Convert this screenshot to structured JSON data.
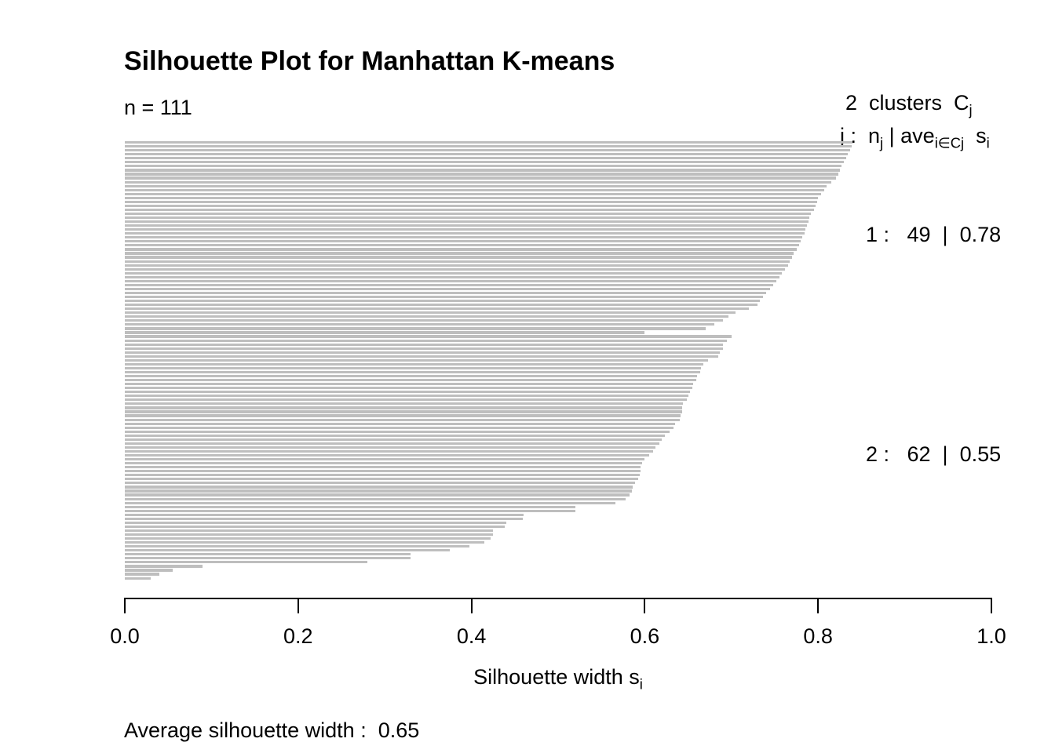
{
  "title": "Silhouette Plot for Manhattan K-means",
  "n_label": "n = 111",
  "legend": {
    "line1_text": "2  clusters  C",
    "line1_sub": "j",
    "formula_p1": "j :  n",
    "formula_s1": "j",
    "formula_p2": " | ave",
    "formula_s2": "i∈Cj",
    "formula_p3": "  s",
    "formula_s3": "i"
  },
  "cluster_labels": [
    "1 :   49  |  0.78",
    "2 :   62  |  0.55"
  ],
  "xaxis": {
    "label_text": "Silhouette width s",
    "label_sub": "i",
    "tick_labels": [
      "0.0",
      "0.2",
      "0.4",
      "0.6",
      "0.8",
      "1.0"
    ]
  },
  "footer": "Average silhouette width :  0.65",
  "chart_data": {
    "type": "bar",
    "orientation": "horizontal",
    "title": "Silhouette Plot for Manhattan K-means",
    "n": 111,
    "k_clusters": 2,
    "average_silhouette_width": 0.65,
    "xlabel": "Silhouette width s_i",
    "xlim": [
      0,
      1
    ],
    "x_ticks": [
      0,
      0.2,
      0.4,
      0.6,
      0.8,
      1
    ],
    "grid": false,
    "bar_color": "#bebebe",
    "clusters": [
      {
        "j": 1,
        "size": 49,
        "ave_sil_width": 0.78,
        "values": [
          0.84,
          0.839,
          0.837,
          0.834,
          0.832,
          0.83,
          0.827,
          0.825,
          0.823,
          0.821,
          0.815,
          0.81,
          0.807,
          0.803,
          0.8,
          0.799,
          0.797,
          0.795,
          0.792,
          0.79,
          0.789,
          0.787,
          0.785,
          0.784,
          0.782,
          0.78,
          0.778,
          0.775,
          0.772,
          0.77,
          0.767,
          0.765,
          0.762,
          0.758,
          0.755,
          0.752,
          0.748,
          0.745,
          0.74,
          0.736,
          0.733,
          0.73,
          0.72,
          0.705,
          0.697,
          0.69,
          0.68,
          0.67,
          0.6
        ]
      },
      {
        "j": 2,
        "size": 62,
        "ave_sil_width": 0.55,
        "values": [
          0.7,
          0.695,
          0.69,
          0.69,
          0.687,
          0.685,
          0.673,
          0.668,
          0.665,
          0.664,
          0.66,
          0.659,
          0.656,
          0.655,
          0.652,
          0.65,
          0.649,
          0.644,
          0.643,
          0.643,
          0.641,
          0.64,
          0.635,
          0.633,
          0.629,
          0.623,
          0.62,
          0.617,
          0.612,
          0.61,
          0.605,
          0.6,
          0.597,
          0.595,
          0.595,
          0.594,
          0.592,
          0.589,
          0.586,
          0.585,
          0.582,
          0.578,
          0.566,
          0.52,
          0.52,
          0.46,
          0.459,
          0.44,
          0.438,
          0.425,
          0.425,
          0.422,
          0.415,
          0.398,
          0.375,
          0.33,
          0.33,
          0.28,
          0.09,
          0.055,
          0.04,
          0.03
        ]
      }
    ]
  }
}
